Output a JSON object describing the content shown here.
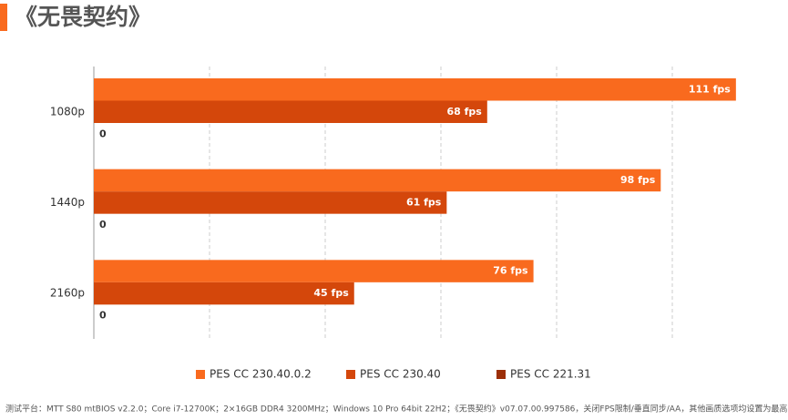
{
  "chart_data": {
    "type": "hbar",
    "title": "《无畏契约》",
    "categories": [
      "1080p",
      "1440p",
      "2160p"
    ],
    "series": [
      {
        "name": "PES CC 230.40.0.2",
        "color": "#f96a1e",
        "values": [
          111,
          98,
          76
        ],
        "value_labels": [
          "111 fps",
          "98 fps",
          "76 fps"
        ]
      },
      {
        "name": "PES CC 230.40",
        "color": "#d4470b",
        "values": [
          68,
          61,
          45
        ],
        "value_labels": [
          "68 fps",
          "61 fps",
          "45 fps"
        ]
      },
      {
        "name": "PES CC 221.31",
        "color": "#9c2f08",
        "values": [
          0,
          0,
          0
        ]
      }
    ],
    "xlim": [
      0,
      120
    ],
    "xticks": [
      0,
      20,
      40,
      60,
      80,
      100
    ],
    "grid": true,
    "legend": "bottom",
    "note": "测试平台：MTT S80 mtBIOS v2.2.0；Core i7-12700K；2×16GB DDR4 3200MHz；Windows 10 Pro 64bit 22H2；《无畏契约》v07.07.00.997586，关闭FPS限制/垂直同步/AA，其他画质选项均设置为最高"
  }
}
